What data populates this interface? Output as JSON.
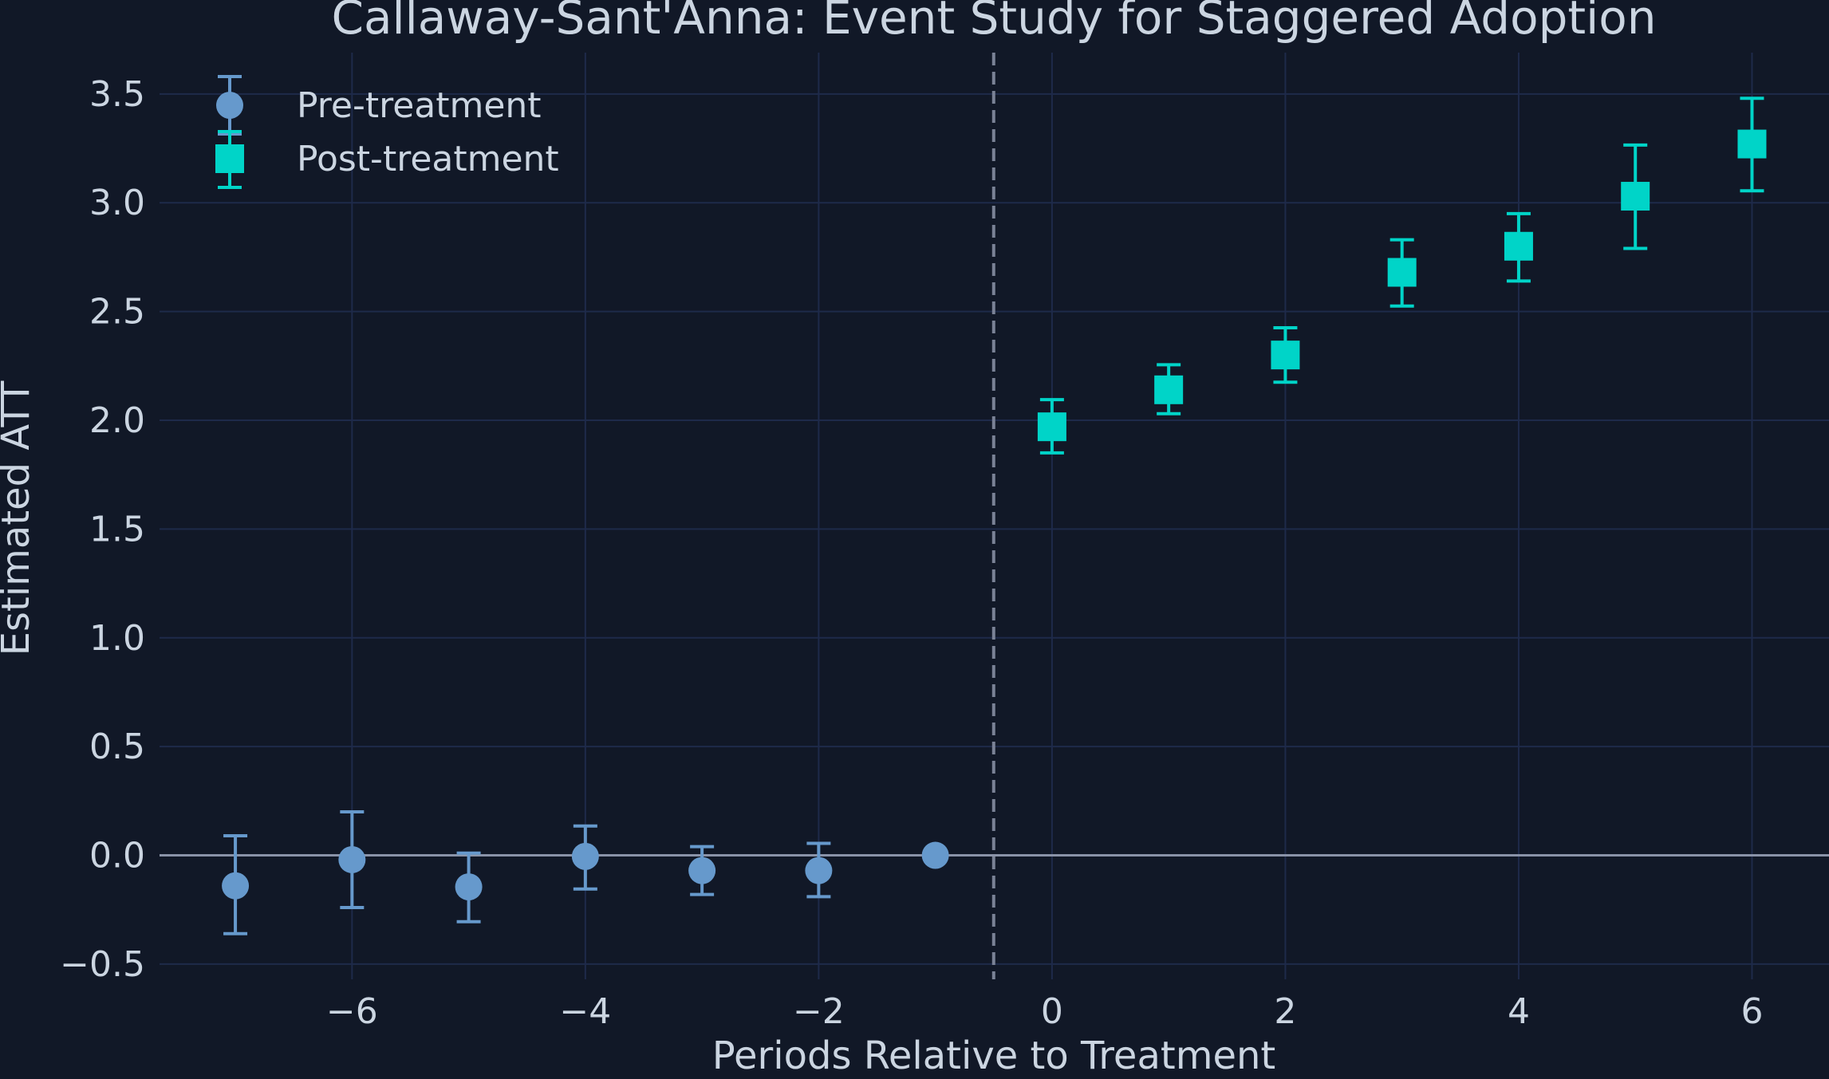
{
  "chart_data": {
    "type": "scatter",
    "title": "Callaway-Sant'Anna: Event Study for Staggered Adoption",
    "xlabel": "Periods Relative to Treatment",
    "ylabel": "Estimated ATT",
    "xlim": [
      -7.65,
      6.66
    ],
    "ylim": [
      -0.57,
      3.69
    ],
    "xticks": [
      -6,
      -4,
      -2,
      0,
      2,
      4,
      6
    ],
    "xtick_labels": [
      "−6",
      "−4",
      "−2",
      "0",
      "2",
      "4",
      "6"
    ],
    "yticks": [
      -0.5,
      0.0,
      0.5,
      1.0,
      1.5,
      2.0,
      2.5,
      3.0,
      3.5
    ],
    "ytick_labels": [
      "−0.5",
      "0.0",
      "0.5",
      "1.0",
      "1.5",
      "2.0",
      "2.5",
      "3.0",
      "3.5"
    ],
    "grid": true,
    "legend_position": "top-left",
    "reference_lines": {
      "horizontal_y": 0,
      "vertical_dashed_x": -0.5
    },
    "colors": {
      "background": "#111827",
      "grid": "#1e2a4a",
      "text": "#cbd5e1",
      "zero_line": "#8a93a8",
      "vline": "#7a8296"
    },
    "series": [
      {
        "name": "Pre-treatment",
        "marker": "circle",
        "color": "#6699cc",
        "x": [
          -7,
          -6,
          -5,
          -4,
          -3,
          -2,
          -1
        ],
        "y": [
          -0.14,
          -0.02,
          -0.145,
          -0.005,
          -0.07,
          -0.07,
          0.0
        ],
        "ci_upper": [
          0.09,
          0.2,
          0.01,
          0.135,
          0.04,
          0.055,
          null
        ],
        "ci_lower": [
          -0.36,
          -0.24,
          -0.305,
          -0.155,
          -0.18,
          -0.19,
          null
        ]
      },
      {
        "name": "Post-treatment",
        "marker": "square",
        "color": "#00d4c8",
        "x": [
          0,
          1,
          2,
          3,
          4,
          5,
          6
        ],
        "y": [
          1.97,
          2.14,
          2.3,
          2.68,
          2.8,
          3.03,
          3.27
        ],
        "ci_upper": [
          2.095,
          2.255,
          2.425,
          2.83,
          2.95,
          3.265,
          3.48
        ],
        "ci_lower": [
          1.85,
          2.03,
          2.175,
          2.525,
          2.64,
          2.79,
          3.055
        ]
      }
    ]
  }
}
